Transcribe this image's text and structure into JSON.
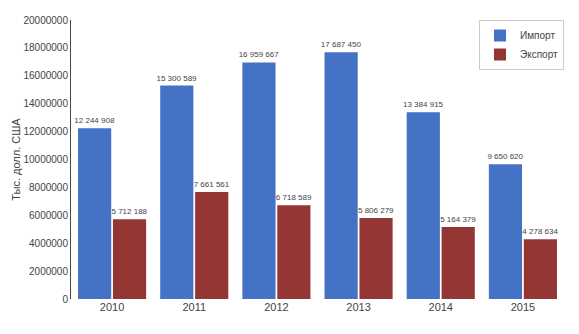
{
  "chart_data": {
    "type": "bar",
    "categories": [
      "2010",
      "2011",
      "2012",
      "2013",
      "2014",
      "2015"
    ],
    "series": [
      {
        "name": "Импорт",
        "color": "#4472C4",
        "values": [
          12244908,
          15300589,
          16959667,
          17687450,
          13384915,
          9650620
        ],
        "value_labels": [
          "12 244 908",
          "15 300 589",
          "16 959 667",
          "17 687 450",
          "13 384 915",
          "9 650 620"
        ]
      },
      {
        "name": "Экспорт",
        "color": "#943634",
        "values": [
          5712188,
          7661561,
          6718589,
          5806279,
          5164379,
          4278634
        ],
        "value_labels": [
          "5 712 188",
          "7 661 561",
          "6 718 589",
          "5 806 279",
          "5 164 379",
          "4 278 634"
        ]
      }
    ],
    "ylabel": "Тыс. долл. США",
    "ylim": [
      0,
      20000000
    ],
    "yticks": [
      0,
      2000000,
      4000000,
      6000000,
      8000000,
      10000000,
      12000000,
      14000000,
      16000000,
      18000000,
      20000000
    ],
    "grid": false,
    "legend": "upper right",
    "data_labels": true
  }
}
